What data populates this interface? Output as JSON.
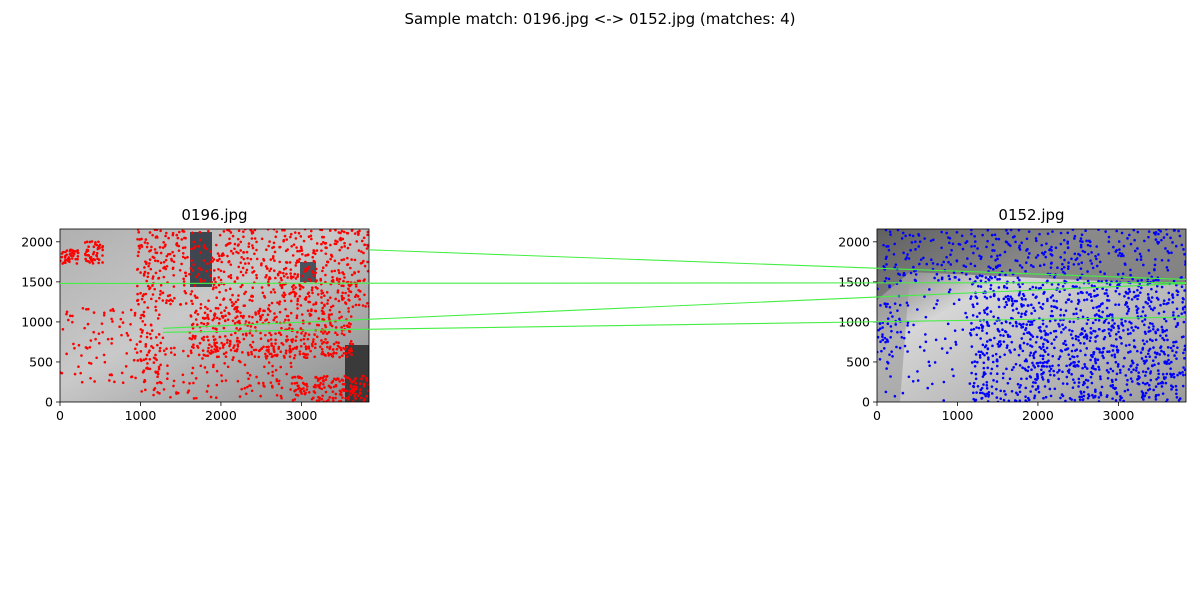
{
  "figure": {
    "title": "Sample match: 0196.jpg <-> 0152.jpg (matches: 4)",
    "match_line_color": "#44ee44",
    "background": "#ffffff"
  },
  "chart_data": [
    {
      "type": "scatter",
      "title": "0196.jpg",
      "keypoint_color": "#ff0000",
      "xlim": [
        0,
        3840
      ],
      "ylim": [
        2160,
        0
      ],
      "x_ticks": [
        0,
        1000,
        2000,
        3000
      ],
      "y_ticks": [
        0,
        500,
        1000,
        1500,
        2000
      ],
      "image_colors": [
        "#9c9c9c",
        "#bdbdbd",
        "#7a7a7a",
        "#3e4650"
      ]
    },
    {
      "type": "scatter",
      "title": "0152.jpg",
      "keypoint_color": "#0000ff",
      "xlim": [
        0,
        3840
      ],
      "ylim": [
        2160,
        0
      ],
      "x_ticks": [
        0,
        1000,
        2000,
        3000
      ],
      "y_ticks": [
        0,
        500,
        1000,
        1500,
        2000
      ],
      "image_colors": [
        "#5a5a5a",
        "#c8c8c8",
        "#e2e2e2",
        "#8f8f8f"
      ]
    }
  ],
  "matches": [
    {
      "from": [
        1280,
        870
      ],
      "to": [
        3840,
        1060
      ]
    },
    {
      "from": [
        1280,
        920
      ],
      "to": [
        3840,
        1480
      ]
    },
    {
      "from": [
        0,
        1480
      ],
      "to": [
        3840,
        1490
      ]
    },
    {
      "from": [
        3840,
        1900
      ],
      "to": [
        3840,
        1530
      ]
    }
  ]
}
